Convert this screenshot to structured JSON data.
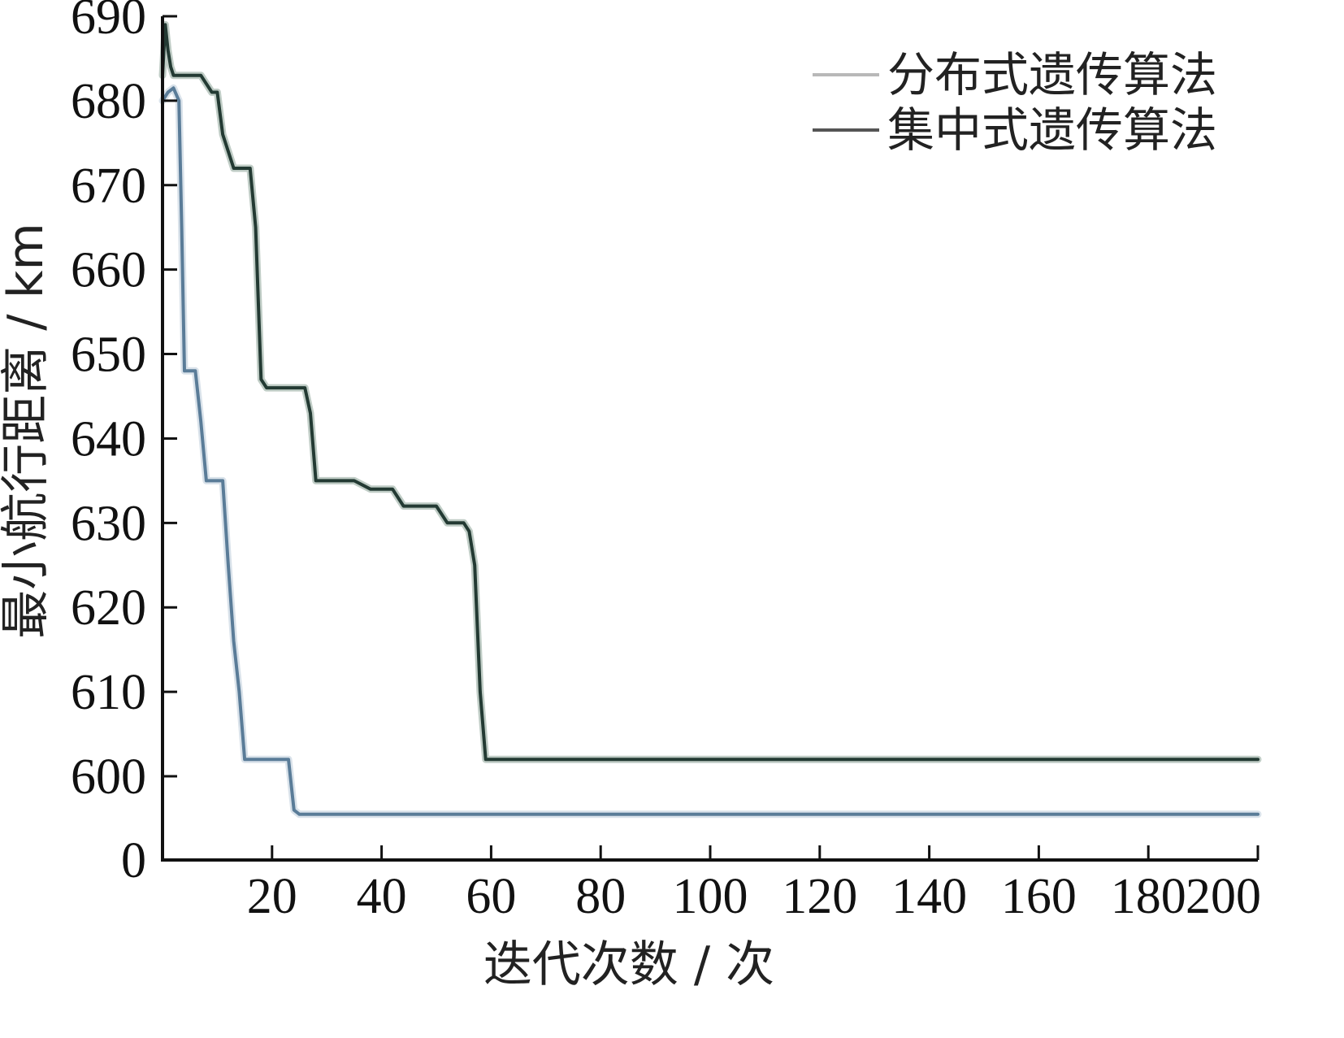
{
  "chart_data": {
    "type": "line",
    "title": "",
    "xlabel": "迭代次数 / 次",
    "ylabel": "最小航行距离 / km",
    "xlim": [
      0,
      200
    ],
    "ylim_display": [
      0,
      690
    ],
    "axis_break": "y axis jumps from 0 directly to 600",
    "x_ticks": [
      20,
      40,
      60,
      80,
      100,
      120,
      140,
      160,
      180,
      200
    ],
    "x_tick_labels": [
      "20",
      "40",
      "60",
      "80",
      "100",
      "120",
      "140",
      "160",
      "180",
      "200"
    ],
    "y_ticks": [
      0,
      600,
      610,
      620,
      630,
      640,
      650,
      660,
      670,
      680,
      690
    ],
    "y_tick_labels": [
      "0",
      "600",
      "610",
      "620",
      "630",
      "640",
      "650",
      "660",
      "670",
      "680",
      "690"
    ],
    "grid": false,
    "legend_position": "top-right",
    "series": [
      {
        "name": "分布式遗传算法",
        "color": "#5a7c98",
        "legend_color": "#b8b8b8",
        "x": [
          0,
          1,
          2,
          3,
          3.5,
          4,
          5,
          6,
          7,
          8,
          9,
          10,
          11,
          12,
          13,
          14,
          15,
          16,
          17,
          18,
          19,
          20,
          21,
          22,
          23,
          24,
          25,
          30,
          50,
          100,
          150,
          200
        ],
        "y": [
          680,
          681,
          681.5,
          680,
          665,
          648,
          648,
          648,
          642,
          635,
          635,
          635,
          635,
          625,
          616,
          610,
          602,
          602,
          602,
          602,
          602,
          602,
          602,
          602,
          602,
          596,
          595.5,
          595.5,
          595.5,
          595.5,
          595.5,
          595.5
        ]
      },
      {
        "name": "集中式遗传算法",
        "color": "#233a33",
        "legend_color": "#555555",
        "x": [
          0,
          0.5,
          1,
          1.5,
          2,
          3,
          4,
          5,
          6,
          7,
          8,
          9,
          10,
          11,
          12,
          13,
          14,
          15,
          16,
          17,
          18,
          19,
          20,
          22,
          24,
          26,
          27,
          28,
          30,
          35,
          38,
          40,
          42,
          44,
          46,
          48,
          50,
          52,
          55,
          56,
          57,
          58,
          59,
          60,
          80,
          100,
          150,
          200
        ],
        "y": [
          683,
          689,
          686,
          684,
          683,
          683,
          683,
          683,
          683,
          683,
          682,
          681,
          681,
          676,
          674,
          672,
          672,
          672,
          672,
          665,
          647,
          646,
          646,
          646,
          646,
          646,
          643,
          635,
          635,
          635,
          634,
          634,
          634,
          632,
          632,
          632,
          632,
          630,
          630,
          629,
          625,
          610,
          602,
          602,
          602,
          602,
          602,
          602
        ]
      }
    ]
  }
}
